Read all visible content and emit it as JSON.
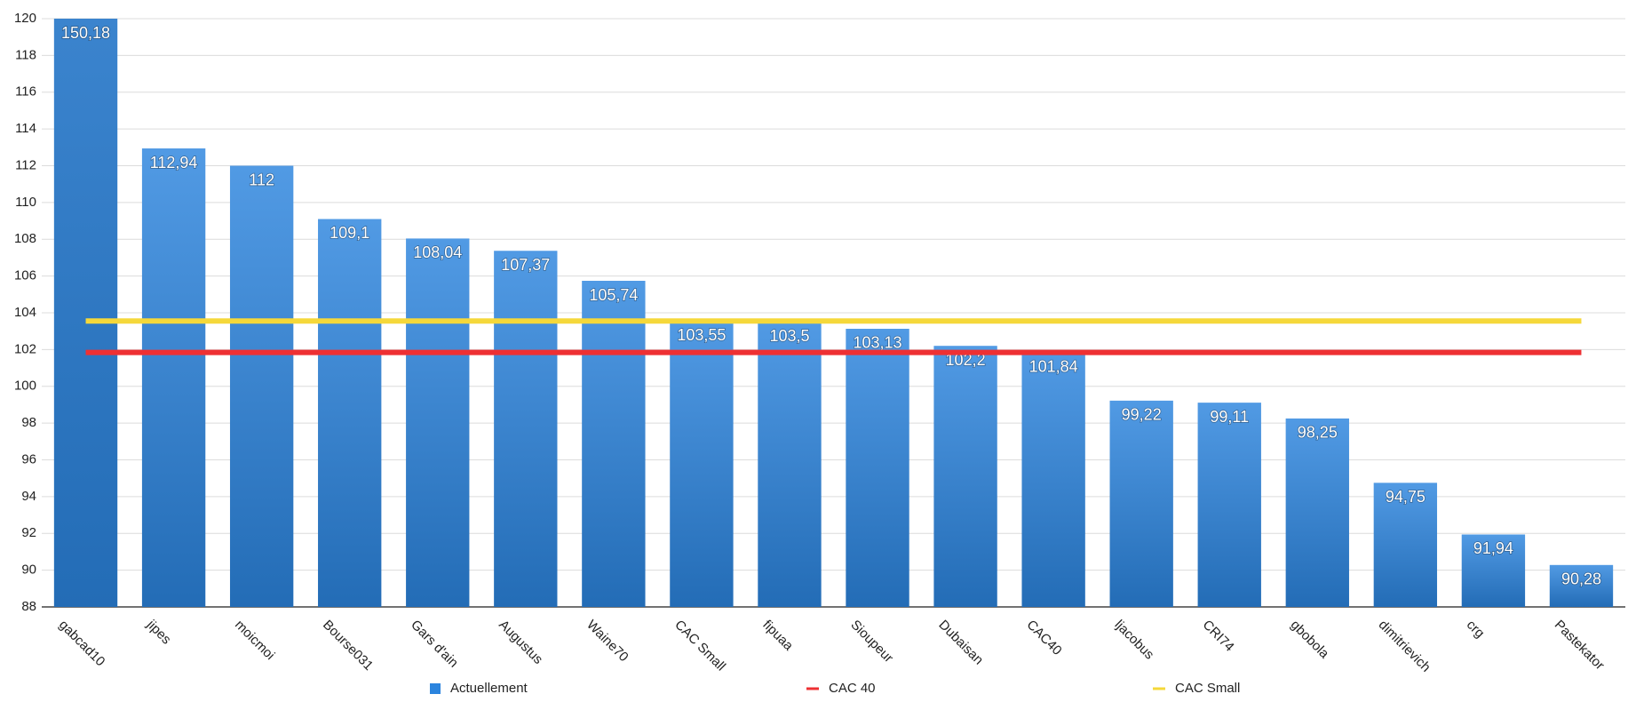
{
  "chart_data": {
    "type": "bar",
    "categories": [
      "gabcad10",
      "jipes",
      "moicmoi",
      "Bourse031",
      "Gars d'ain",
      "Augustus",
      "Waine70",
      "CAC Small",
      "fipuaa",
      "Sioupeur",
      "Dubaisan",
      "CAC40",
      "ljacobus",
      "CRI74",
      "gbobola",
      "dimitrievich",
      "crg",
      "Pastekator"
    ],
    "series": [
      {
        "name": "Actuellement",
        "color": "#2b84de",
        "values": [
          150.18,
          112.94,
          112,
          109.1,
          108.04,
          107.37,
          105.74,
          103.55,
          103.5,
          103.13,
          102.2,
          101.84,
          99.22,
          99.11,
          98.25,
          94.75,
          91.94,
          90.28
        ],
        "value_labels": [
          "150,18",
          "112,94",
          "112",
          "109,1",
          "108,04",
          "107,37",
          "105,74",
          "103,55",
          "103,5",
          "103,13",
          "102,2",
          "101,84",
          "99,22",
          "99,11",
          "98,25",
          "94,75",
          "91,94",
          "90,28"
        ]
      }
    ],
    "reference_lines": [
      {
        "name": "CAC 40",
        "color": "#ee3033",
        "value": 101.84
      },
      {
        "name": "CAC Small",
        "color": "#f5d83a",
        "value": 103.55
      }
    ],
    "ylim": [
      88,
      120
    ],
    "yticks": [
      88,
      90,
      92,
      94,
      96,
      98,
      100,
      102,
      104,
      106,
      108,
      110,
      112,
      114,
      116,
      118,
      120
    ],
    "grid": true
  }
}
